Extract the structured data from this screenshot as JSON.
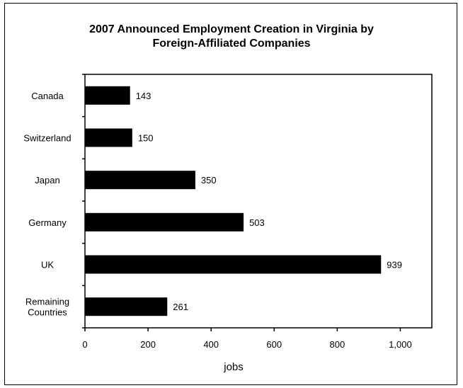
{
  "chart_data": {
    "type": "bar",
    "orientation": "horizontal",
    "title": "2007 Announced Employment Creation in Virginia by",
    "subtitle": "Foreign-Affiliated Companies",
    "categories": [
      "Canada",
      "Switzerland",
      "Japan",
      "Germany",
      "UK",
      "Remaining Countries"
    ],
    "category_lines": [
      [
        "Canada"
      ],
      [
        "Switzerland"
      ],
      [
        "Japan"
      ],
      [
        "Germany"
      ],
      [
        "UK"
      ],
      [
        "Remaining",
        "Countries"
      ]
    ],
    "values": [
      143,
      150,
      350,
      503,
      939,
      261
    ],
    "data_labels": [
      "143",
      "150",
      "350",
      "503",
      "939",
      "261"
    ],
    "xlabel": "jobs",
    "ylabel": "",
    "xlim": [
      0,
      1100
    ],
    "xticks": [
      0,
      200,
      400,
      600,
      800,
      1000
    ],
    "xtick_labels": [
      "0",
      "200",
      "400",
      "600",
      "800",
      "1,000"
    ],
    "grid": false,
    "legend": "none",
    "bar_color": "#000000"
  }
}
